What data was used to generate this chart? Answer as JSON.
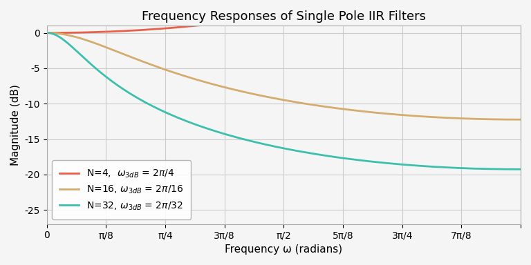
{
  "title": "Frequency Responses of Single Pole IIR Filters",
  "xlabel": "Frequency ω (radians)",
  "ylabel": "Magnitude (dB)",
  "filters": [
    {
      "N": 4,
      "color": "#E8604A",
      "label": "N=4,  $\\omega_{3dB}$ = 2$\\pi$/4"
    },
    {
      "N": 16,
      "color": "#D4AC6E",
      "label": "N=16, $\\omega_{3dB}$ = 2$\\pi$/16"
    },
    {
      "N": 32,
      "color": "#3DBFAD",
      "label": "N=32, $\\omega_{3dB}$ = 2$\\pi$/32"
    }
  ],
  "xlim": [
    0,
    3.14159265
  ],
  "ylim": [
    -27,
    1
  ],
  "xtick_positions": [
    0,
    0.392699,
    0.785398,
    1.178097,
    1.570796,
    1.963495,
    2.356194,
    2.748894,
    3.141593
  ],
  "xtick_labels": [
    "0",
    "π/8",
    "π/4",
    "3π/8",
    "π/2",
    "5π/8",
    "3π/4",
    "7π/8",
    ""
  ],
  "ytick_positions": [
    0,
    -5,
    -10,
    -15,
    -20,
    -25
  ],
  "background_color": "#f5f5f5",
  "grid_color": "#cccccc",
  "n_points": 2000
}
